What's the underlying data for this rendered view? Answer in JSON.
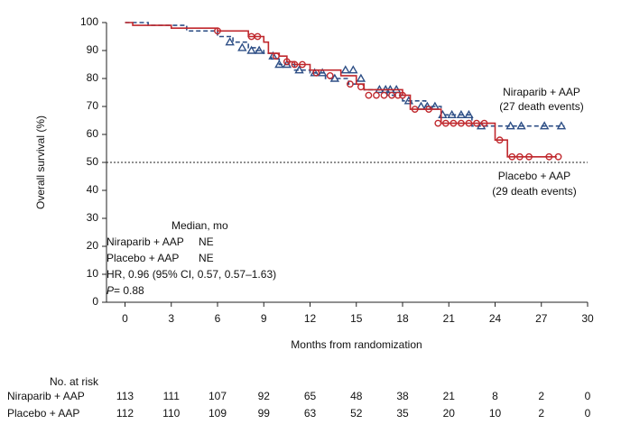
{
  "chart_data": {
    "type": "km",
    "y_label": "Overall survival (%)",
    "x_label": "Months from randomization",
    "xlim": [
      -1.2,
      30
    ],
    "xticks": [
      0,
      3,
      6,
      9,
      12,
      15,
      18,
      21,
      24,
      27,
      30
    ],
    "ylim": [
      0,
      100
    ],
    "yticks": [
      0,
      10,
      20,
      30,
      40,
      50,
      60,
      70,
      80,
      90,
      100
    ],
    "reference_line": 50,
    "series": [
      {
        "name": "Niraparib + AAP",
        "events_label": "(27 death events)",
        "color": "#2e4f86",
        "dashed": true,
        "marker": "triangle",
        "x": [
          0,
          1.5,
          4,
          6,
          7,
          8,
          8.5,
          9,
          9.5,
          10,
          11,
          12,
          13,
          14.5,
          15.5,
          17,
          18,
          19.5,
          20.5,
          22.5,
          28.5
        ],
        "values": [
          100,
          99,
          97,
          95,
          93,
          91,
          90,
          89,
          87,
          85,
          83,
          82,
          80,
          78,
          76,
          74,
          72,
          70,
          67,
          63,
          63
        ],
        "censor_x": [
          6.8,
          7.6,
          8.2,
          8.7,
          9.6,
          10,
          10.5,
          11.3,
          12.3,
          12.8,
          13.6,
          14.3,
          14.8,
          15.3,
          16.5,
          16.9,
          17.2,
          17.6,
          18.4,
          19.2,
          19.6,
          20.1,
          20.6,
          21.2,
          21.8,
          22.3,
          23.1,
          25,
          25.7,
          27.2,
          28.3
        ],
        "censor_values": [
          93,
          91,
          90,
          90,
          88,
          85,
          85,
          83,
          82,
          82,
          80,
          83,
          83,
          80,
          76,
          76,
          76,
          76,
          72,
          70,
          70,
          70,
          67,
          67,
          67,
          67,
          63,
          63,
          63,
          63,
          63
        ]
      },
      {
        "name": "Placebo + AAP",
        "events_label": "(29 death events)",
        "color": "#c0282d",
        "dashed": false,
        "marker": "circle",
        "x": [
          0,
          0.5,
          3,
          6,
          8,
          9,
          9.3,
          10,
          10.5,
          11,
          12,
          14,
          15,
          15.5,
          18,
          18.5,
          20,
          20.5,
          23.5,
          24,
          24.8,
          28
        ],
        "values": [
          100,
          99,
          98,
          97,
          95,
          93,
          89,
          88,
          86,
          85,
          83,
          81,
          78,
          76,
          74,
          69,
          69,
          64,
          64,
          58,
          52,
          52
        ],
        "censor_x": [
          6,
          8.2,
          8.6,
          9.8,
          10.5,
          11,
          11.5,
          12.4,
          13.3,
          14.6,
          15.3,
          15.8,
          16.3,
          16.8,
          17.3,
          17.7,
          18,
          18.8,
          19.7,
          20.3,
          20.8,
          21.3,
          21.8,
          22.3,
          22.8,
          23.3,
          24.3,
          25.1,
          25.6,
          26.2,
          27.5,
          28.1
        ],
        "censor_values": [
          97,
          95,
          95,
          88,
          86,
          85,
          85,
          82,
          81,
          78,
          77,
          74,
          74,
          74,
          74,
          74,
          74,
          69,
          69,
          64,
          64,
          64,
          64,
          64,
          64,
          64,
          58,
          52,
          52,
          52,
          52,
          52
        ]
      }
    ],
    "stats": {
      "header": "Median, mo",
      "rows": [
        [
          "Niraparib + AAP",
          "NE"
        ],
        [
          "Placebo + AAP",
          "NE"
        ]
      ],
      "hr": "HR, 0.96 (95% CI, 0.57, 0.57–1.63)",
      "p_symbol": "P",
      "p_text": "= 0.88"
    },
    "risk_table": {
      "title": "No. at risk",
      "rows": [
        {
          "name": "Niraparib + AAP",
          "counts": [
            "113",
            "111",
            "107",
            "92",
            "65",
            "48",
            "38",
            "21",
            "8",
            "2",
            "0"
          ]
        },
        {
          "name": "Placebo + AAP",
          "counts": [
            "112",
            "110",
            "109",
            "99",
            "63",
            "52",
            "35",
            "20",
            "10",
            "2",
            "0"
          ]
        }
      ]
    }
  }
}
